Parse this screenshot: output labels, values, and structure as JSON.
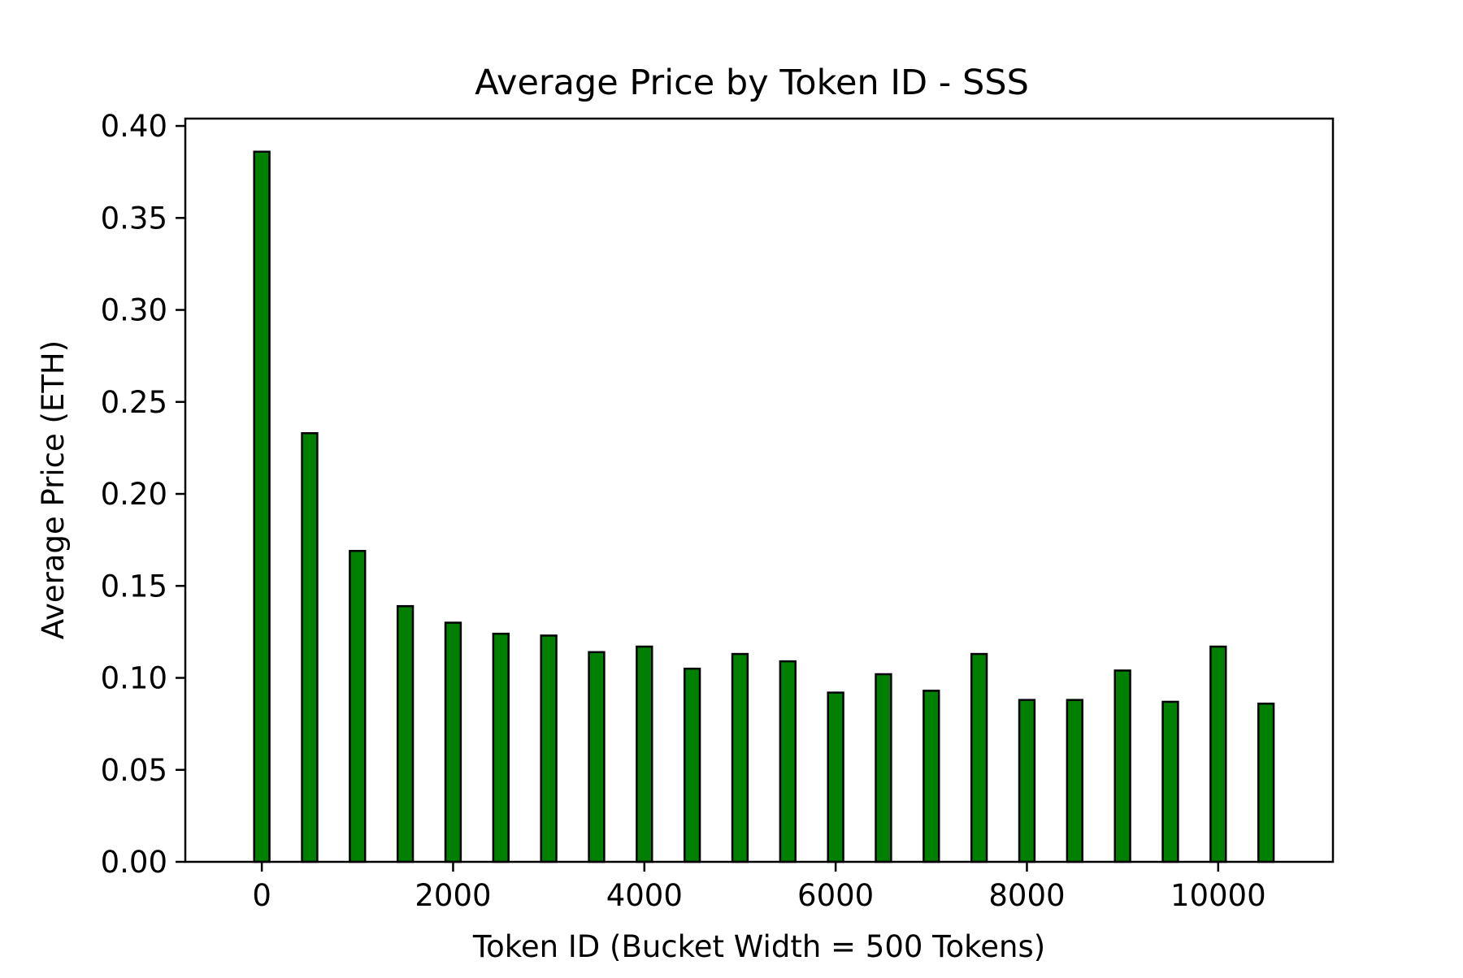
{
  "chart_data": {
    "type": "bar",
    "title": "Average Price by Token ID - SSS",
    "xlabel": "Token ID (Bucket Width = 500 Tokens)",
    "ylabel": "Average Price (ETH)",
    "x": [
      0,
      500,
      1000,
      1500,
      2000,
      2500,
      3000,
      3500,
      4000,
      4500,
      5000,
      5500,
      6000,
      6500,
      7000,
      7500,
      8000,
      8500,
      9000,
      9500,
      10000,
      10500
    ],
    "values": [
      0.386,
      0.233,
      0.169,
      0.139,
      0.13,
      0.124,
      0.123,
      0.114,
      0.117,
      0.105,
      0.113,
      0.109,
      0.092,
      0.102,
      0.093,
      0.113,
      0.088,
      0.088,
      0.104,
      0.087,
      0.117,
      0.086
    ],
    "xlim": [
      -800,
      11200
    ],
    "ylim": [
      0,
      0.404
    ],
    "xticks": [
      "0",
      "2000",
      "4000",
      "6000",
      "8000",
      "10000"
    ],
    "yticks": [
      "0.00",
      "0.05",
      "0.10",
      "0.15",
      "0.20",
      "0.25",
      "0.30",
      "0.35",
      "0.40"
    ],
    "bar_width_units": 160,
    "bar_color": "#008000",
    "edge_color": "#000000",
    "grid": false,
    "legend": "none"
  }
}
